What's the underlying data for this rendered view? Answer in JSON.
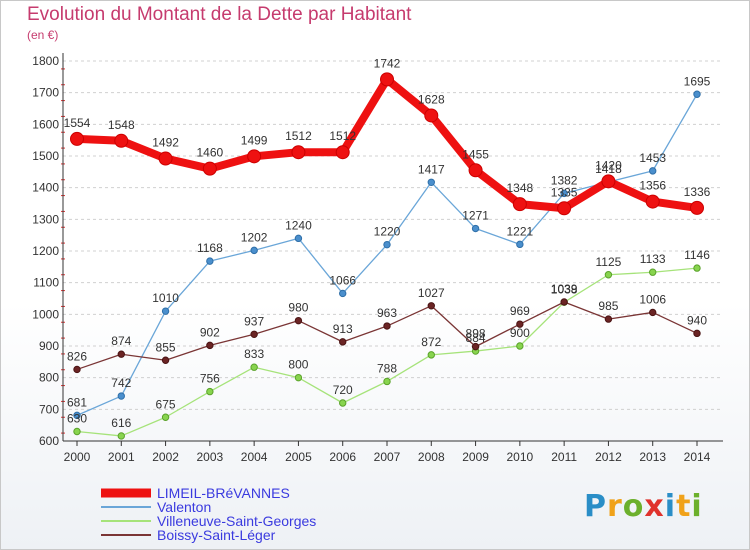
{
  "chart_data": {
    "type": "line",
    "title": "Evolution du Montant de la Dette par Habitant",
    "subtitle": "(en €)",
    "xlabel": "",
    "ylabel": "",
    "categories": [
      "2000",
      "2001",
      "2002",
      "2003",
      "2004",
      "2005",
      "2006",
      "2007",
      "2008",
      "2009",
      "2010",
      "2011",
      "2012",
      "2013",
      "2014"
    ],
    "ylim": [
      600,
      1800
    ],
    "yticks": [
      600,
      700,
      800,
      900,
      1000,
      1100,
      1200,
      1300,
      1400,
      1500,
      1600,
      1700,
      1800
    ],
    "grid": "horizontal dashed",
    "legend": "bottom",
    "series": [
      {
        "name": "LIMEIL-BRéVANNES",
        "color": "#ee1111",
        "values": [
          1554,
          1548,
          1492,
          1460,
          1499,
          1512,
          1512,
          1742,
          1628,
          1455,
          1348,
          1335,
          1420,
          1356,
          1336
        ]
      },
      {
        "name": "Valenton",
        "color": "#5b9bd5",
        "values": [
          681,
          742,
          1010,
          1168,
          1202,
          1240,
          1066,
          1220,
          1417,
          1271,
          1221,
          1382,
          1418,
          1453,
          1695
        ]
      },
      {
        "name": "Villeneuve-Saint-Georges",
        "color": "#99e06a",
        "values": [
          630,
          616,
          675,
          756,
          833,
          800,
          720,
          788,
          872,
          884,
          900,
          1038,
          1125,
          1133,
          1146
        ]
      },
      {
        "name": "Boissy-Saint-Léger",
        "color": "#7a2e2e",
        "values": [
          826,
          874,
          855,
          902,
          937,
          980,
          913,
          963,
          1027,
          898,
          969,
          1039,
          985,
          1006,
          940
        ]
      }
    ]
  },
  "logo": {
    "text": "Proxiti"
  }
}
